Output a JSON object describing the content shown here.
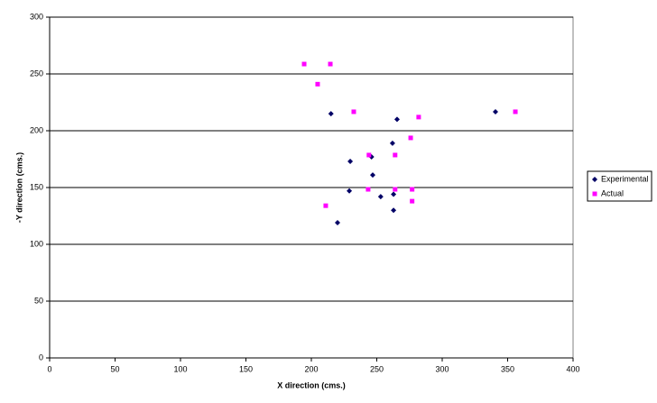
{
  "chart_data": {
    "type": "scatter",
    "x_label": "X direction (cms.)",
    "y_label": "-Y direction (cms.)",
    "xlim": [
      0,
      400
    ],
    "xticks": [
      0,
      50,
      100,
      150,
      200,
      250,
      300,
      350,
      400
    ],
    "ylim": [
      0,
      300
    ],
    "yticks": [
      0,
      50,
      100,
      150,
      200,
      250,
      300
    ],
    "grid": true,
    "legend": "right",
    "series": [
      {
        "name": "Experimental",
        "color": "#000066",
        "marker": "diamond",
        "x": [
          215,
          265.5,
          340.7,
          262,
          229.7,
          246,
          246.9,
          229,
          253,
          262.8,
          262.8,
          220
        ],
        "values": [
          215,
          210,
          216.7,
          189,
          173,
          177,
          161,
          147,
          142,
          144,
          130,
          119
        ]
      },
      {
        "name": "Actual",
        "color": "#ff00ff",
        "marker": "square",
        "x": [
          194.5,
          214.5,
          204.8,
          232.4,
          355.9,
          282,
          275.9,
          244,
          264,
          243.4,
          264,
          277,
          211,
          277
        ],
        "values": [
          258.7,
          258.7,
          241,
          216.7,
          216.7,
          212,
          193.7,
          178.6,
          178.6,
          148.4,
          148.4,
          148.4,
          134,
          138
        ]
      }
    ]
  }
}
